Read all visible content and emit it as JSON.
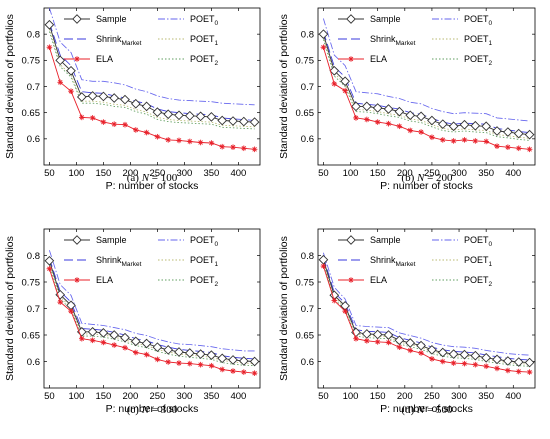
{
  "figure": {
    "xlabel": "P: number of stocks",
    "ylabel": "Standard deviation of portfolios"
  },
  "series_styles": [
    {
      "key": "sample",
      "color": "#333333",
      "dash": "",
      "marker": "diamond"
    },
    {
      "key": "shrink",
      "color": "#3a3adc",
      "dash": "9,4",
      "marker": "none"
    },
    {
      "key": "ela",
      "color": "#e8202a",
      "dash": "",
      "marker": "star"
    },
    {
      "key": "poet0",
      "color": "#6666ee",
      "dash": "7,2,1.5,2",
      "marker": "none"
    },
    {
      "key": "poet1",
      "color": "#b8b870",
      "dash": "1.5,2",
      "marker": "none"
    },
    {
      "key": "poet2",
      "color": "#5f9e5f",
      "dash": "1.5,2",
      "marker": "none"
    }
  ],
  "legend": [
    {
      "text": "Sample",
      "sub": ""
    },
    {
      "text": "Shrink",
      "sub": "Market"
    },
    {
      "text": "ELA",
      "sub": ""
    },
    {
      "text": "POET",
      "sub": "0"
    },
    {
      "text": "POET",
      "sub": "1"
    },
    {
      "text": "POET",
      "sub": "2"
    }
  ],
  "captions": [
    {
      "prefix": "(a) ",
      "var": "N",
      "value": " = 100"
    },
    {
      "prefix": "(b) ",
      "var": "N",
      "value": " = 200"
    },
    {
      "prefix": "(c) ",
      "var": "N",
      "value": " = 300"
    },
    {
      "prefix": "(d) ",
      "var": "N",
      "value": " = 500"
    }
  ],
  "chart_data": [
    {
      "type": "line",
      "caption": "(a) N = 100",
      "xlabel": "P: number of stocks",
      "ylabel": "Standard deviation of portfolios",
      "xlim": [
        40,
        440
      ],
      "ylim": [
        0.55,
        0.85
      ],
      "xticks": [
        50,
        100,
        150,
        200,
        250,
        300,
        350,
        400
      ],
      "yticks": [
        0.6,
        0.65,
        0.7,
        0.75,
        0.8
      ],
      "x": [
        50,
        70,
        90,
        110,
        130,
        150,
        170,
        190,
        210,
        230,
        250,
        270,
        290,
        310,
        330,
        350,
        370,
        390,
        410,
        430
      ],
      "series": [
        {
          "name": "Sample",
          "values": [
            0.818,
            0.75,
            0.73,
            0.68,
            0.682,
            0.681,
            0.678,
            0.675,
            0.667,
            0.662,
            0.651,
            0.647,
            0.645,
            0.644,
            0.643,
            0.642,
            0.635,
            0.634,
            0.633,
            0.632
          ]
        },
        {
          "name": "ShrinkMarket",
          "values": [
            0.822,
            0.76,
            0.74,
            0.69,
            0.688,
            0.687,
            0.682,
            0.678,
            0.672,
            0.667,
            0.657,
            0.652,
            0.65,
            0.648,
            0.647,
            0.646,
            0.64,
            0.638,
            0.637,
            0.635
          ]
        },
        {
          "name": "ELA",
          "values": [
            0.775,
            0.708,
            0.691,
            0.641,
            0.64,
            0.632,
            0.628,
            0.627,
            0.617,
            0.612,
            0.604,
            0.598,
            0.597,
            0.595,
            0.593,
            0.592,
            0.585,
            0.584,
            0.582,
            0.58
          ]
        },
        {
          "name": "POET0",
          "values": [
            0.85,
            0.785,
            0.765,
            0.713,
            0.71,
            0.71,
            0.707,
            0.703,
            0.695,
            0.69,
            0.682,
            0.677,
            0.674,
            0.673,
            0.672,
            0.671,
            0.668,
            0.667,
            0.666,
            0.665
          ]
        },
        {
          "name": "POET1",
          "values": [
            0.81,
            0.742,
            0.722,
            0.672,
            0.672,
            0.67,
            0.666,
            0.664,
            0.656,
            0.651,
            0.641,
            0.637,
            0.635,
            0.634,
            0.633,
            0.632,
            0.626,
            0.625,
            0.624,
            0.623
          ]
        },
        {
          "name": "POET2",
          "values": [
            0.805,
            0.738,
            0.718,
            0.668,
            0.668,
            0.666,
            0.662,
            0.66,
            0.652,
            0.647,
            0.637,
            0.633,
            0.631,
            0.63,
            0.629,
            0.628,
            0.622,
            0.621,
            0.62,
            0.619
          ]
        }
      ]
    },
    {
      "type": "line",
      "caption": "(b) N = 200",
      "xlabel": "P: number of stocks",
      "ylabel": "Standard deviation of portfolios",
      "xlim": [
        40,
        440
      ],
      "ylim": [
        0.55,
        0.85
      ],
      "xticks": [
        50,
        100,
        150,
        200,
        250,
        300,
        350,
        400
      ],
      "yticks": [
        0.6,
        0.65,
        0.7,
        0.75,
        0.8
      ],
      "x": [
        50,
        70,
        90,
        110,
        130,
        150,
        170,
        190,
        210,
        230,
        250,
        270,
        290,
        310,
        330,
        350,
        370,
        390,
        410,
        430
      ],
      "series": [
        {
          "name": "Sample",
          "values": [
            0.8,
            0.73,
            0.71,
            0.662,
            0.662,
            0.659,
            0.657,
            0.652,
            0.645,
            0.643,
            0.635,
            0.628,
            0.624,
            0.627,
            0.625,
            0.624,
            0.615,
            0.613,
            0.61,
            0.608
          ]
        },
        {
          "name": "ShrinkMarket",
          "values": [
            0.805,
            0.738,
            0.718,
            0.668,
            0.666,
            0.664,
            0.66,
            0.657,
            0.65,
            0.647,
            0.639,
            0.632,
            0.628,
            0.63,
            0.629,
            0.628,
            0.62,
            0.617,
            0.614,
            0.612
          ]
        },
        {
          "name": "ELA",
          "values": [
            0.775,
            0.705,
            0.692,
            0.64,
            0.637,
            0.632,
            0.629,
            0.624,
            0.616,
            0.613,
            0.603,
            0.598,
            0.596,
            0.598,
            0.596,
            0.595,
            0.586,
            0.584,
            0.582,
            0.58
          ]
        },
        {
          "name": "POET0",
          "values": [
            0.83,
            0.76,
            0.74,
            0.69,
            0.688,
            0.686,
            0.681,
            0.677,
            0.67,
            0.667,
            0.658,
            0.652,
            0.648,
            0.65,
            0.649,
            0.648,
            0.64,
            0.638,
            0.636,
            0.634
          ]
        },
        {
          "name": "POET1",
          "values": [
            0.795,
            0.725,
            0.705,
            0.656,
            0.655,
            0.652,
            0.648,
            0.645,
            0.638,
            0.635,
            0.627,
            0.62,
            0.617,
            0.619,
            0.617,
            0.616,
            0.608,
            0.606,
            0.603,
            0.601
          ]
        },
        {
          "name": "POET2",
          "values": [
            0.79,
            0.72,
            0.7,
            0.652,
            0.651,
            0.648,
            0.644,
            0.641,
            0.634,
            0.631,
            0.623,
            0.616,
            0.613,
            0.615,
            0.613,
            0.612,
            0.604,
            0.602,
            0.599,
            0.597
          ]
        }
      ]
    },
    {
      "type": "line",
      "caption": "(c) N = 300",
      "xlabel": "P: number of stocks",
      "ylabel": "Standard deviation of portfolios",
      "xlim": [
        40,
        440
      ],
      "ylim": [
        0.55,
        0.85
      ],
      "xticks": [
        50,
        100,
        150,
        200,
        250,
        300,
        350,
        400
      ],
      "yticks": [
        0.6,
        0.65,
        0.7,
        0.75,
        0.8
      ],
      "x": [
        50,
        70,
        90,
        110,
        130,
        150,
        170,
        190,
        210,
        230,
        250,
        270,
        290,
        310,
        330,
        350,
        370,
        390,
        410,
        430
      ],
      "series": [
        {
          "name": "Sample",
          "values": [
            0.79,
            0.726,
            0.706,
            0.656,
            0.656,
            0.654,
            0.65,
            0.645,
            0.638,
            0.634,
            0.627,
            0.622,
            0.618,
            0.616,
            0.614,
            0.612,
            0.606,
            0.603,
            0.601,
            0.6
          ]
        },
        {
          "name": "ShrinkMarket",
          "values": [
            0.795,
            0.732,
            0.712,
            0.662,
            0.661,
            0.659,
            0.655,
            0.65,
            0.643,
            0.639,
            0.632,
            0.627,
            0.623,
            0.621,
            0.619,
            0.617,
            0.611,
            0.608,
            0.606,
            0.605
          ]
        },
        {
          "name": "ELA",
          "values": [
            0.775,
            0.712,
            0.695,
            0.643,
            0.64,
            0.636,
            0.631,
            0.626,
            0.617,
            0.613,
            0.604,
            0.599,
            0.597,
            0.596,
            0.594,
            0.592,
            0.585,
            0.582,
            0.58,
            0.578
          ]
        },
        {
          "name": "POET0",
          "values": [
            0.81,
            0.745,
            0.725,
            0.672,
            0.67,
            0.668,
            0.664,
            0.66,
            0.653,
            0.649,
            0.642,
            0.637,
            0.633,
            0.632,
            0.63,
            0.628,
            0.624,
            0.622,
            0.62,
            0.62
          ]
        },
        {
          "name": "POET1",
          "values": [
            0.787,
            0.722,
            0.702,
            0.652,
            0.652,
            0.65,
            0.646,
            0.641,
            0.634,
            0.63,
            0.623,
            0.618,
            0.614,
            0.612,
            0.61,
            0.608,
            0.602,
            0.599,
            0.597,
            0.596
          ]
        },
        {
          "name": "POET2",
          "values": [
            0.782,
            0.718,
            0.698,
            0.648,
            0.648,
            0.646,
            0.642,
            0.637,
            0.63,
            0.626,
            0.619,
            0.614,
            0.61,
            0.608,
            0.606,
            0.604,
            0.598,
            0.595,
            0.593,
            0.592
          ]
        }
      ]
    },
    {
      "type": "line",
      "caption": "(d) N = 500",
      "xlabel": "P: number of stocks",
      "ylabel": "Standard deviation of portfolios",
      "xlim": [
        40,
        440
      ],
      "ylim": [
        0.55,
        0.85
      ],
      "xticks": [
        50,
        100,
        150,
        200,
        250,
        300,
        350,
        400
      ],
      "yticks": [
        0.6,
        0.65,
        0.7,
        0.75,
        0.8
      ],
      "x": [
        50,
        70,
        90,
        110,
        130,
        150,
        170,
        190,
        210,
        230,
        250,
        270,
        290,
        310,
        330,
        350,
        370,
        390,
        410,
        430
      ],
      "series": [
        {
          "name": "Sample",
          "values": [
            0.792,
            0.725,
            0.705,
            0.655,
            0.652,
            0.651,
            0.65,
            0.64,
            0.635,
            0.63,
            0.622,
            0.617,
            0.614,
            0.613,
            0.611,
            0.607,
            0.604,
            0.601,
            0.599,
            0.598
          ]
        },
        {
          "name": "ShrinkMarket",
          "values": [
            0.797,
            0.73,
            0.71,
            0.66,
            0.657,
            0.656,
            0.655,
            0.645,
            0.64,
            0.635,
            0.627,
            0.622,
            0.619,
            0.618,
            0.616,
            0.612,
            0.609,
            0.606,
            0.604,
            0.603
          ]
        },
        {
          "name": "ELA",
          "values": [
            0.78,
            0.715,
            0.695,
            0.643,
            0.639,
            0.637,
            0.636,
            0.627,
            0.621,
            0.616,
            0.605,
            0.6,
            0.597,
            0.596,
            0.594,
            0.591,
            0.587,
            0.583,
            0.581,
            0.58
          ]
        },
        {
          "name": "POET0",
          "values": [
            0.805,
            0.74,
            0.718,
            0.668,
            0.666,
            0.665,
            0.664,
            0.654,
            0.649,
            0.644,
            0.636,
            0.631,
            0.628,
            0.627,
            0.625,
            0.621,
            0.618,
            0.615,
            0.613,
            0.612
          ]
        },
        {
          "name": "POET1",
          "values": [
            0.789,
            0.722,
            0.702,
            0.652,
            0.649,
            0.648,
            0.647,
            0.637,
            0.632,
            0.627,
            0.619,
            0.614,
            0.611,
            0.61,
            0.608,
            0.604,
            0.601,
            0.598,
            0.596,
            0.595
          ]
        },
        {
          "name": "POET2",
          "values": [
            0.785,
            0.718,
            0.698,
            0.648,
            0.645,
            0.644,
            0.643,
            0.633,
            0.628,
            0.623,
            0.615,
            0.61,
            0.607,
            0.606,
            0.604,
            0.6,
            0.597,
            0.594,
            0.592,
            0.591
          ]
        }
      ]
    }
  ]
}
